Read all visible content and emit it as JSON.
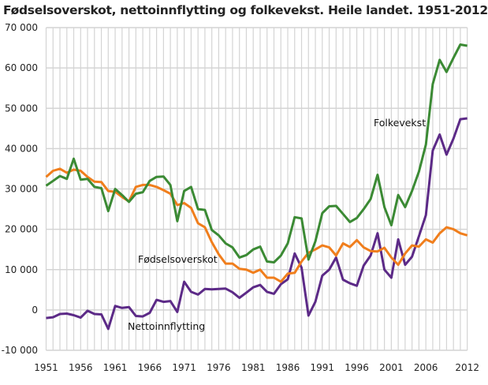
{
  "chart_data": {
    "type": "line",
    "title": "Fødselsoverskot, nettoinnflytting og folkevekst. Heile landet. 1951-2012",
    "xlabel": "",
    "ylabel": "",
    "xlim": [
      1951,
      2012
    ],
    "ylim": [
      -10000,
      70000
    ],
    "grid": true,
    "x_ticks": [
      "1951",
      "1956",
      "1961",
      "1966",
      "1971",
      "1976",
      "1981",
      "1986",
      "1991",
      "1996",
      "2001",
      "2006",
      "2012"
    ],
    "y_ticks": [
      "-10 000",
      "0",
      "10 000",
      "20 000",
      "30 000",
      "40 000",
      "50 000",
      "60 000",
      "70 000"
    ],
    "x": [
      1951,
      1952,
      1953,
      1954,
      1955,
      1956,
      1957,
      1958,
      1959,
      1960,
      1961,
      1962,
      1963,
      1964,
      1965,
      1966,
      1967,
      1968,
      1969,
      1970,
      1971,
      1972,
      1973,
      1974,
      1975,
      1976,
      1977,
      1978,
      1979,
      1980,
      1981,
      1982,
      1983,
      1984,
      1985,
      1986,
      1987,
      1988,
      1989,
      1990,
      1991,
      1992,
      1993,
      1994,
      1995,
      1996,
      1997,
      1998,
      1999,
      2000,
      2001,
      2002,
      2003,
      2004,
      2005,
      2006,
      2007,
      2008,
      2009,
      2010,
      2011,
      2012
    ],
    "series": [
      {
        "name": "Folkevekst",
        "color": "#3b8a34",
        "values": [
          30800,
          32000,
          33200,
          32500,
          37500,
          32300,
          32500,
          30500,
          30200,
          24500,
          30000,
          28500,
          26800,
          28800,
          29200,
          32000,
          33000,
          33100,
          31000,
          22000,
          29500,
          30500,
          25000,
          24800,
          19800,
          18500,
          16500,
          15500,
          13000,
          13600,
          15000,
          15700,
          12000,
          11800,
          13500,
          16500,
          23000,
          22700,
          12500,
          17000,
          24000,
          25700,
          25800,
          23800,
          21800,
          22800,
          25000,
          27500,
          33500,
          25500,
          21000,
          28500,
          25500,
          29500,
          34300,
          41000,
          56000,
          62000,
          59000,
          62500,
          65800,
          65500
        ]
      },
      {
        "name": "Fødselsoverskot",
        "color": "#f07e1c",
        "values": [
          33000,
          34500,
          35000,
          34000,
          34800,
          34500,
          33000,
          31800,
          31700,
          29500,
          29300,
          28000,
          26900,
          30500,
          31000,
          31000,
          30500,
          29700,
          28800,
          26000,
          26500,
          25300,
          21500,
          20500,
          16800,
          13800,
          11500,
          11500,
          10200,
          10000,
          9200,
          10000,
          8000,
          8000,
          7000,
          9000,
          9200,
          12000,
          14200,
          15000,
          16000,
          15500,
          13500,
          16500,
          15600,
          17300,
          15500,
          14600,
          14500,
          15400,
          13000,
          11200,
          14000,
          16000,
          15700,
          17500,
          16700,
          19000,
          20500,
          20000,
          19000,
          18500
        ]
      },
      {
        "name": "Nettoinnflytting",
        "color": "#5c2a87",
        "values": [
          -2000,
          -1800,
          -1000,
          -900,
          -1300,
          -1900,
          -200,
          -1000,
          -1100,
          -4700,
          1000,
          500,
          700,
          -1500,
          -1600,
          -700,
          2500,
          2000,
          2200,
          -500,
          7000,
          4500,
          3800,
          5200,
          5100,
          5200,
          5300,
          4400,
          3000,
          4300,
          5600,
          6200,
          4500,
          4000,
          6400,
          7600,
          14000,
          10500,
          -1400,
          2000,
          8500,
          10000,
          13000,
          7500,
          6600,
          6000,
          11000,
          13500,
          19000,
          10000,
          8000,
          17500,
          11200,
          13200,
          18300,
          23500,
          39500,
          43500,
          38500,
          42500,
          47300,
          47500
        ]
      }
    ]
  }
}
